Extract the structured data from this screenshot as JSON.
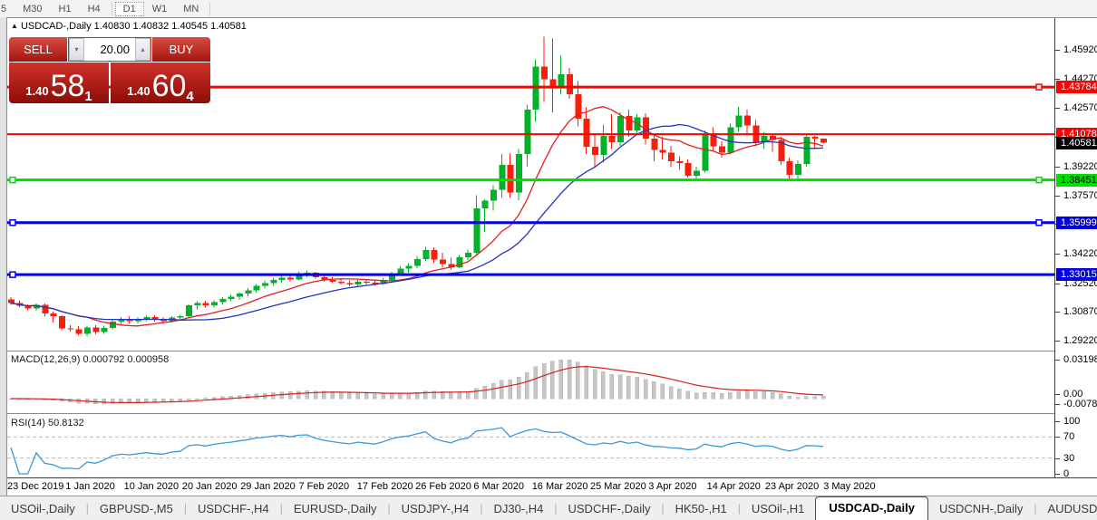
{
  "toolbar": {
    "timeframes": [
      "5",
      "M30",
      "H1",
      "H4",
      "D1",
      "W1",
      "MN"
    ],
    "active_timeframe": "D1",
    "separators_after": [
      "H4",
      "MN"
    ]
  },
  "chart_window": {
    "arrow": "▲",
    "symbol": "USDCAD-,Daily",
    "ohlc_text": "1.40830 1.40832 1.40545 1.40581"
  },
  "trade_panel": {
    "sell_label": "SELL",
    "buy_label": "BUY",
    "volume": "20.00",
    "volume_down": "▾",
    "volume_up": "▴",
    "sell_price": {
      "small": "1.40",
      "big": "58",
      "sup": "1"
    },
    "buy_price": {
      "small": "1.40",
      "big": "60",
      "sup": "4"
    }
  },
  "price_axis": {
    "ticks": [
      "1.45920",
      "1.44270",
      "1.42570",
      "1.40920",
      "1.39220",
      "1.37570",
      "1.35920",
      "1.34220",
      "1.32520",
      "1.30870",
      "1.29220"
    ]
  },
  "current_price": {
    "label": "1.40581",
    "value": 1.40581,
    "bg": "#000000",
    "text": "#ffffff"
  },
  "hlines": [
    {
      "label": "1.43784",
      "price": 1.43784,
      "color": "#fd0000",
      "width": 3,
      "handles": [
        "right"
      ],
      "text": "#ffffff"
    },
    {
      "label": "1.41078",
      "price": 1.41078,
      "color": "#fd0000",
      "width": 2,
      "handles": [],
      "text": "#ffffff"
    },
    {
      "label": "1.38451",
      "price": 1.38451,
      "color": "#00dd00",
      "width": 3,
      "handles": [
        "left",
        "right"
      ],
      "text": "#000000"
    },
    {
      "label": "1.35999",
      "price": 1.35999,
      "color": "#0000e0",
      "width": 3,
      "handles": [
        "left",
        "right"
      ],
      "text": "#ffffff"
    },
    {
      "label": "1.33015",
      "price": 1.33015,
      "color": "#0000e0",
      "width": 3,
      "handles": [
        "left"
      ],
      "text": "#ffffff"
    }
  ],
  "macd": {
    "title": "MACD(12,26,9) 0.000792 0.000958",
    "axis_max": "0.031987",
    "axis_zero": "0.00",
    "axis_min": "-0.007875",
    "bar_color": "#c6c6c6",
    "signal_color": "#d42020"
  },
  "rsi": {
    "title": "RSI(14) 50.8132",
    "axis": [
      "100",
      "70",
      "30",
      "0"
    ],
    "levels": [
      70,
      30
    ],
    "line_color": "#3d98d8",
    "level_color": "#bbbbbb"
  },
  "x_axis": {
    "dates": [
      "23 Dec 2019",
      "1 Jan 2020",
      "10 Jan 2020",
      "20 Jan 2020",
      "29 Jan 2020",
      "7 Feb 2020",
      "17 Feb 2020",
      "26 Feb 2020",
      "6 Mar 2020",
      "16 Mar 2020",
      "25 Mar 2020",
      "3 Apr 2020",
      "14 Apr 2020",
      "23 Apr 2020",
      "3 May 2020"
    ]
  },
  "tabs": {
    "items": [
      "USOil-,Daily",
      "GBPUSD-,M5",
      "USDCHF-,H4",
      "EURUSD-,Daily",
      "USDJPY-,H4",
      "DJ30-,H4",
      "USDCHF-,Daily",
      "HK50-,H1",
      "USOil-,H1",
      "USDCAD-,Daily",
      "USDCNH-,Daily",
      "AUDUSD-,Daily"
    ],
    "active": "USDCAD-,Daily",
    "scroll_left": "◂",
    "scroll_right": "▸"
  },
  "chart_data": {
    "type": "candlestick",
    "symbol": "USDCAD-",
    "timeframe": "Daily",
    "price_range": [
      1.28708,
      1.4774
    ],
    "bull_color": "#00b227",
    "bear_color": "#fb1d0c",
    "ma_fast_color": "#e02020",
    "ma_slow_color": "#2233c0",
    "ma_fast_period": 10,
    "ma_slow_period": 20,
    "ohlc": [
      [
        1.316,
        1.3172,
        1.3128,
        1.3138
      ],
      [
        1.3138,
        1.3152,
        1.3115,
        1.3122
      ],
      [
        1.3122,
        1.313,
        1.3098,
        1.3108
      ],
      [
        1.3108,
        1.3135,
        1.3095,
        1.3128
      ],
      [
        1.3128,
        1.3135,
        1.3062,
        1.3078
      ],
      [
        1.3078,
        1.3088,
        1.3028,
        1.3062
      ],
      [
        1.3062,
        1.3068,
        1.2982,
        1.2992
      ],
      [
        1.2992,
        1.3012,
        1.2975,
        1.2988
      ],
      [
        1.2988,
        1.3005,
        1.2952,
        1.2962
      ],
      [
        1.2962,
        1.3008,
        1.2948,
        1.2998
      ],
      [
        1.2998,
        1.3012,
        1.2958,
        1.2972
      ],
      [
        1.2972,
        1.3008,
        1.2962,
        1.2995
      ],
      [
        1.2995,
        1.3042,
        1.2988,
        1.3032
      ],
      [
        1.3032,
        1.3058,
        1.3015,
        1.3048
      ],
      [
        1.3048,
        1.3062,
        1.3022,
        1.3035
      ],
      [
        1.3035,
        1.3058,
        1.3022,
        1.3048
      ],
      [
        1.3048,
        1.3068,
        1.3035,
        1.3058
      ],
      [
        1.3058,
        1.3068,
        1.3032,
        1.3042
      ],
      [
        1.3042,
        1.3058,
        1.3022,
        1.3035
      ],
      [
        1.3035,
        1.3062,
        1.3028,
        1.3055
      ],
      [
        1.3055,
        1.3072,
        1.3042,
        1.3062
      ],
      [
        1.3062,
        1.3132,
        1.3055,
        1.3125
      ],
      [
        1.3125,
        1.3148,
        1.3102,
        1.3138
      ],
      [
        1.3138,
        1.3152,
        1.3112,
        1.3125
      ],
      [
        1.3125,
        1.3155,
        1.3112,
        1.3145
      ],
      [
        1.3145,
        1.3172,
        1.3132,
        1.3162
      ],
      [
        1.3162,
        1.3188,
        1.3148,
        1.3175
      ],
      [
        1.3175,
        1.3202,
        1.3158,
        1.3192
      ],
      [
        1.3192,
        1.3225,
        1.3178,
        1.3212
      ],
      [
        1.3212,
        1.3248,
        1.3198,
        1.3238
      ],
      [
        1.3238,
        1.3268,
        1.3222,
        1.3252
      ],
      [
        1.3252,
        1.3285,
        1.3238,
        1.3272
      ],
      [
        1.3272,
        1.3298,
        1.3252,
        1.3285
      ],
      [
        1.3285,
        1.3302,
        1.3262,
        1.3275
      ],
      [
        1.3275,
        1.3318,
        1.3268,
        1.3305
      ],
      [
        1.3305,
        1.3325,
        1.3288,
        1.3312
      ],
      [
        1.3312,
        1.3318,
        1.3278,
        1.3288
      ],
      [
        1.3288,
        1.3302,
        1.3262,
        1.3272
      ],
      [
        1.3272,
        1.3288,
        1.3252,
        1.3262
      ],
      [
        1.3262,
        1.3275,
        1.3242,
        1.3252
      ],
      [
        1.3252,
        1.3268,
        1.3235,
        1.3245
      ],
      [
        1.3245,
        1.3272,
        1.3238,
        1.3262
      ],
      [
        1.3262,
        1.3275,
        1.3245,
        1.3255
      ],
      [
        1.3255,
        1.3268,
        1.3238,
        1.3248
      ],
      [
        1.3248,
        1.3282,
        1.3242,
        1.3272
      ],
      [
        1.3272,
        1.3318,
        1.3262,
        1.3308
      ],
      [
        1.3308,
        1.3348,
        1.3295,
        1.3335
      ],
      [
        1.3335,
        1.3368,
        1.3312,
        1.3352
      ],
      [
        1.3352,
        1.3408,
        1.334,
        1.3392
      ],
      [
        1.3392,
        1.3462,
        1.3378,
        1.3442
      ],
      [
        1.3442,
        1.3458,
        1.3368,
        1.3388
      ],
      [
        1.3388,
        1.3428,
        1.3342,
        1.3362
      ],
      [
        1.3362,
        1.3398,
        1.3332,
        1.3345
      ],
      [
        1.3345,
        1.3415,
        1.3338,
        1.3402
      ],
      [
        1.3402,
        1.3445,
        1.3385,
        1.3428
      ],
      [
        1.3428,
        1.3758,
        1.3408,
        1.3682
      ],
      [
        1.3682,
        1.3735,
        1.3548,
        1.3725
      ],
      [
        1.3725,
        1.3815,
        1.3668,
        1.3788
      ],
      [
        1.3788,
        1.3995,
        1.3742,
        1.3932
      ],
      [
        1.3932,
        1.3998,
        1.3742,
        1.3772
      ],
      [
        1.3772,
        1.4022,
        1.3728,
        1.3995
      ],
      [
        1.3995,
        1.4278,
        1.3922,
        1.4248
      ],
      [
        1.4248,
        1.4538,
        1.4178,
        1.4495
      ],
      [
        1.4495,
        1.4668,
        1.4292,
        1.4422
      ],
      [
        1.4422,
        1.4658,
        1.4232,
        1.4385
      ],
      [
        1.4385,
        1.4562,
        1.4338,
        1.4452
      ],
      [
        1.4452,
        1.4488,
        1.4312,
        1.4338
      ],
      [
        1.4338,
        1.4412,
        1.4152,
        1.4198
      ],
      [
        1.4198,
        1.4262,
        1.3995,
        1.4035
      ],
      [
        1.4035,
        1.4105,
        1.3922,
        1.3988
      ],
      [
        1.3988,
        1.4162,
        1.3945,
        1.4098
      ],
      [
        1.4098,
        1.4222,
        1.4022,
        1.4062
      ],
      [
        1.4062,
        1.4232,
        1.4042,
        1.4212
      ],
      [
        1.4212,
        1.4248,
        1.4092,
        1.4128
      ],
      [
        1.4128,
        1.4222,
        1.4102,
        1.4205
      ],
      [
        1.4205,
        1.4228,
        1.4048,
        1.4082
      ],
      [
        1.4082,
        1.4098,
        1.3952,
        1.4018
      ],
      [
        1.4018,
        1.4092,
        1.3962,
        1.4002
      ],
      [
        1.4002,
        1.4042,
        1.3918,
        1.3952
      ],
      [
        1.3952,
        1.3982,
        1.3902,
        1.3942
      ],
      [
        1.3942,
        1.3962,
        1.3858,
        1.3868
      ],
      [
        1.3868,
        1.3922,
        1.3842,
        1.3898
      ],
      [
        1.3898,
        1.4128,
        1.3888,
        1.4112
      ],
      [
        1.4112,
        1.4148,
        1.4012,
        1.4038
      ],
      [
        1.4038,
        1.4068,
        1.3972,
        1.4002
      ],
      [
        1.4002,
        1.4168,
        1.3992,
        1.4148
      ],
      [
        1.4148,
        1.4265,
        1.4122,
        1.4215
      ],
      [
        1.4215,
        1.4248,
        1.4108,
        1.4158
      ],
      [
        1.4158,
        1.4188,
        1.4042,
        1.4062
      ],
      [
        1.4062,
        1.4118,
        1.4022,
        1.4098
      ],
      [
        1.4098,
        1.4112,
        1.4008,
        1.4075
      ],
      [
        1.4075,
        1.4092,
        1.3932,
        1.3952
      ],
      [
        1.3952,
        1.3972,
        1.3852,
        1.3875
      ],
      [
        1.3875,
        1.3958,
        1.3845,
        1.3938
      ],
      [
        1.3938,
        1.4112,
        1.3922,
        1.4092
      ],
      [
        1.4092,
        1.4098,
        1.4025,
        1.4083
      ],
      [
        1.4083,
        1.40832,
        1.40545,
        1.40581
      ]
    ]
  }
}
